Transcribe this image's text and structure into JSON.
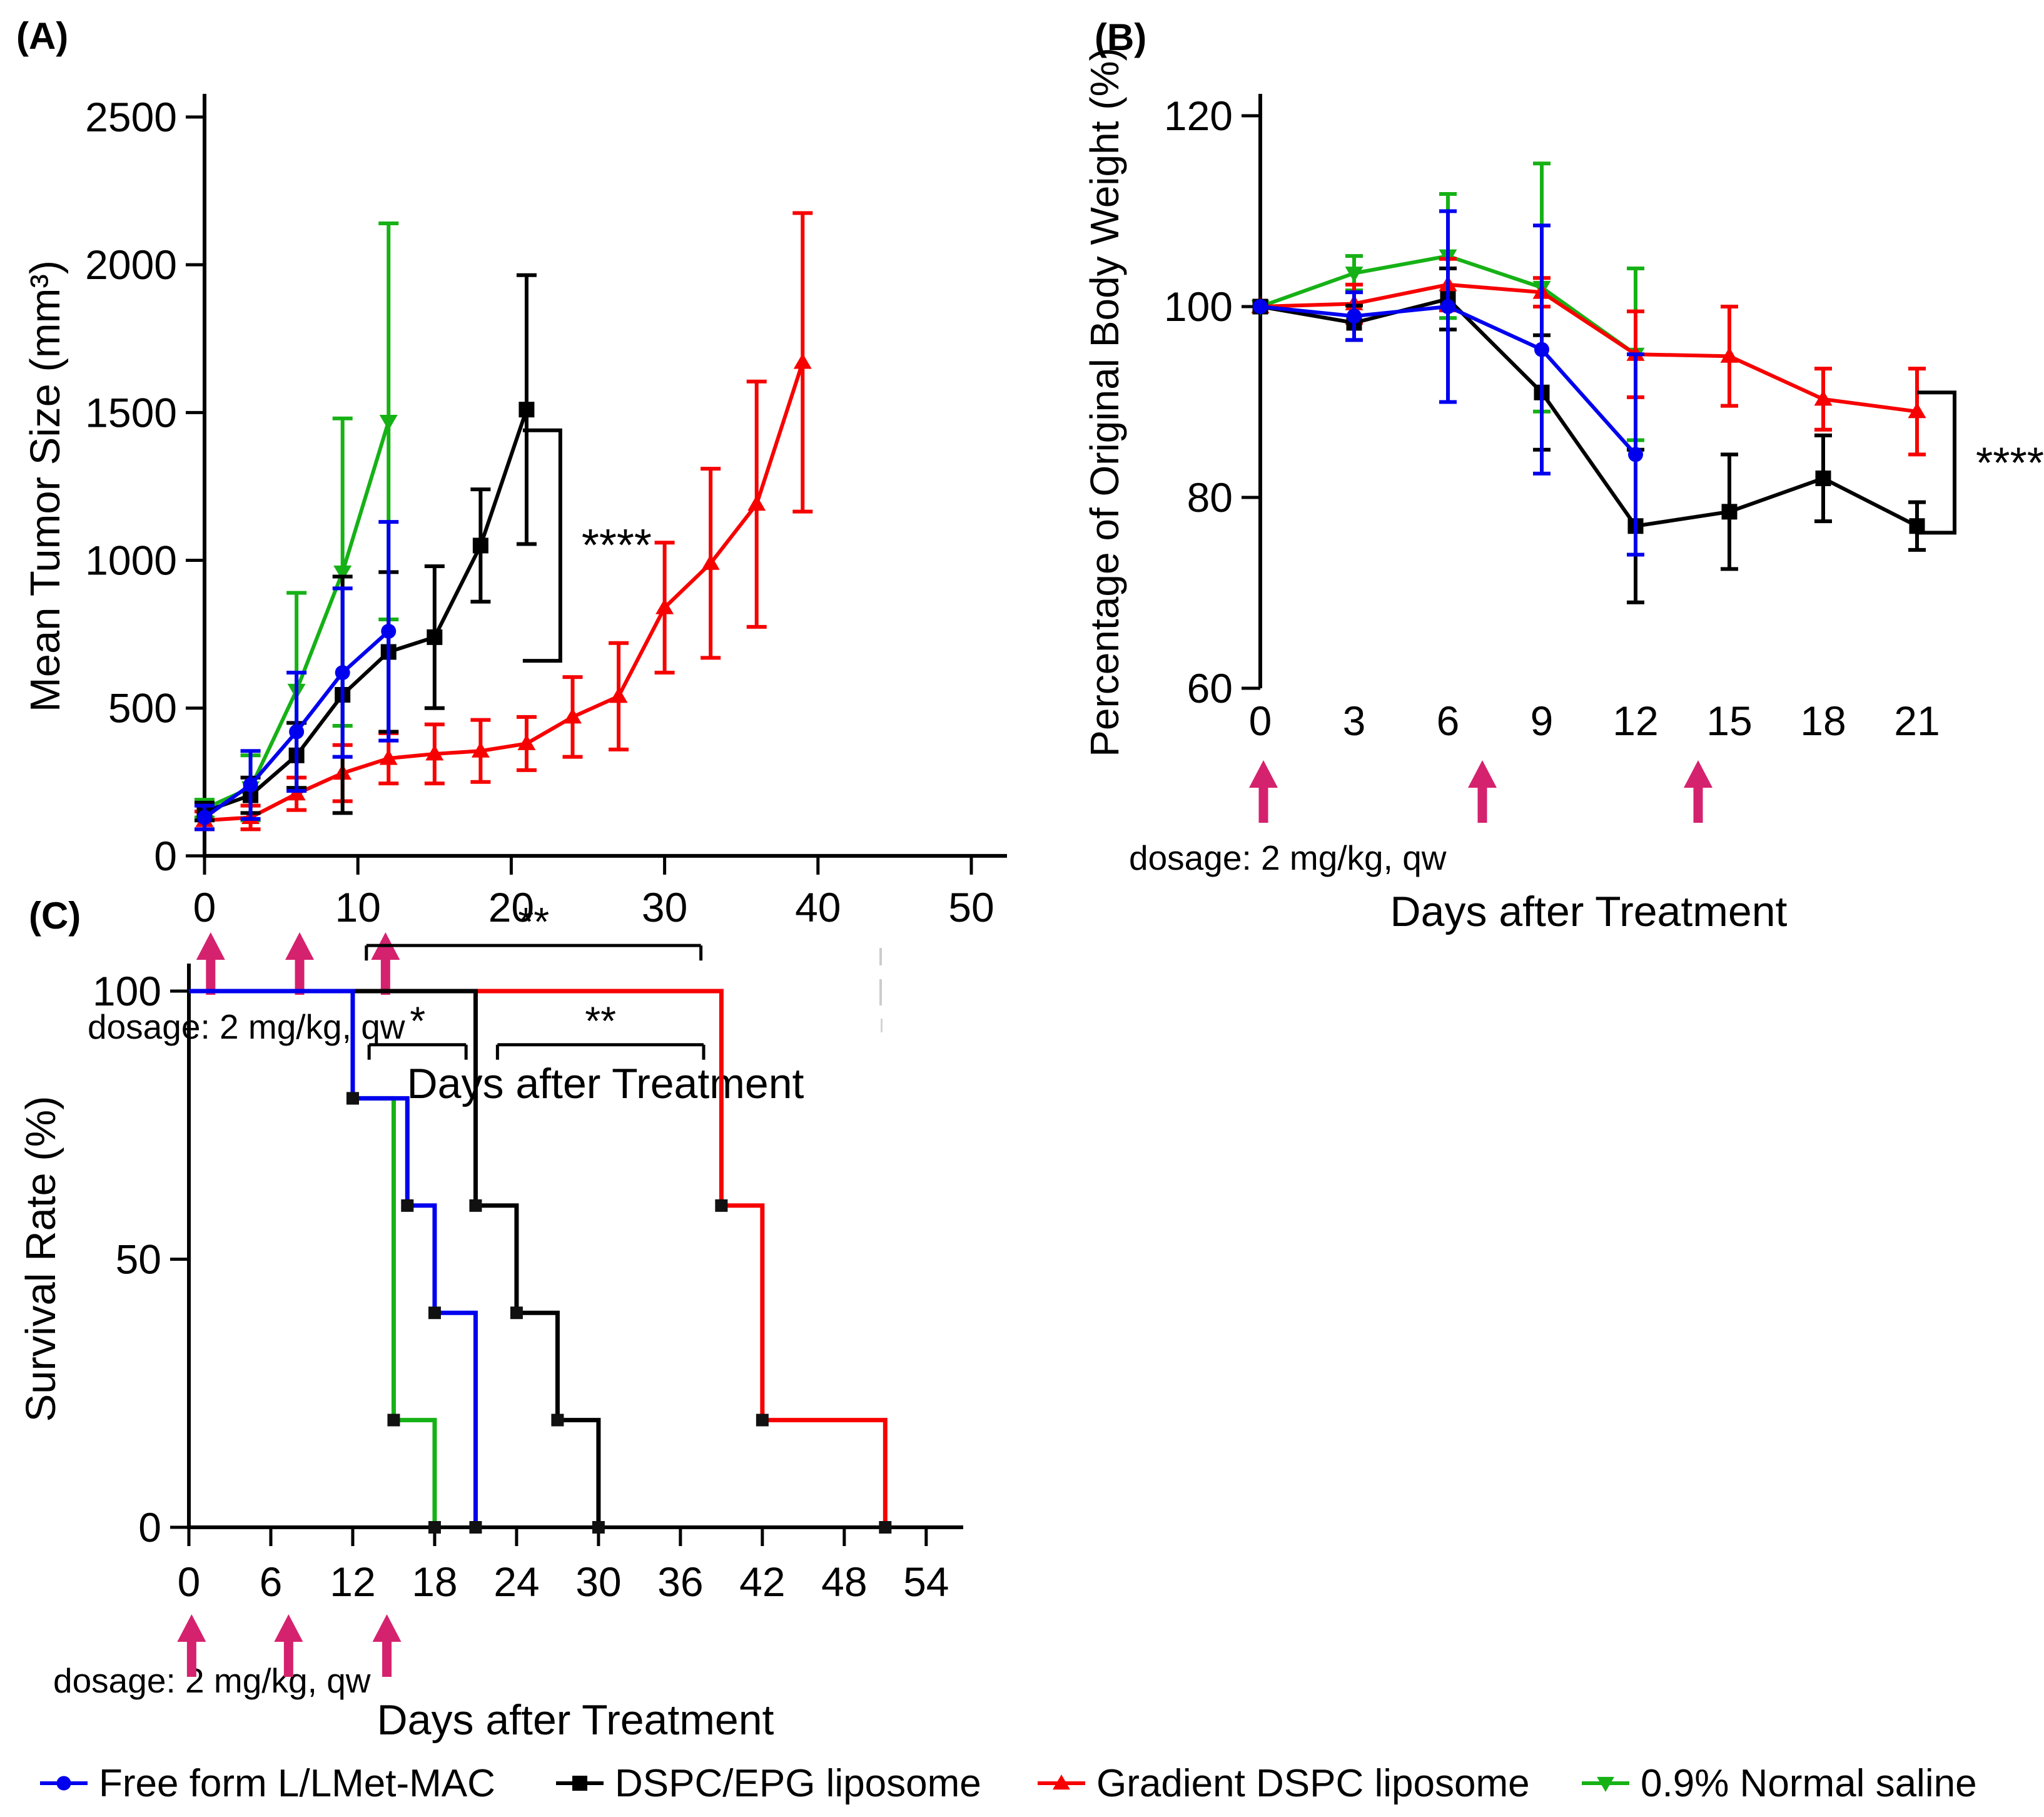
{
  "colors": {
    "blue": "#0000EE",
    "black": "#000000",
    "red": "#F70000",
    "green": "#16B116",
    "arrow_magenta": "#D5226E",
    "axis": "#000000",
    "artifact_gray": "#cccccc"
  },
  "legend": {
    "items": [
      {
        "label": "Free form L/LMet-MAC",
        "color": "#0000EE",
        "marker": "circle"
      },
      {
        "label": "DSPC/EPG liposome",
        "color": "#000000",
        "marker": "square"
      },
      {
        "label": "Gradient DSPC liposome",
        "color": "#F70000",
        "marker": "triangle-up"
      },
      {
        "label": "0.9% Normal saline",
        "color": "#16B116",
        "marker": "triangle-down"
      }
    ]
  },
  "chart_data": [
    {
      "panel_label": "(A)",
      "type": "line",
      "xlabel": "Days after Treatment",
      "ylabel": "Mean Tumor Size (mm³)",
      "xlim": [
        0,
        50
      ],
      "ylim": [
        0,
        2500
      ],
      "xticks": [
        0,
        10,
        20,
        30,
        40,
        50
      ],
      "yticks": [
        0,
        500,
        1000,
        1500,
        2000,
        2500
      ],
      "grid": false,
      "dosage_note": "dosage: 2 mg/kg, qw",
      "dosage_arrow_days": [
        0.4,
        6.2,
        11.8
      ],
      "series": [
        {
          "name": "Free form L/LMet-MAC",
          "color": "#0000EE",
          "marker": "circle",
          "x": [
            0,
            3,
            6,
            9,
            12
          ],
          "y": [
            130,
            240,
            420,
            620,
            760
          ],
          "err": [
            40,
            115,
            200,
            285,
            370
          ]
        },
        {
          "name": "DSPC/EPG liposome",
          "color": "#000000",
          "marker": "square",
          "x": [
            0,
            3,
            6,
            9,
            12,
            15,
            18,
            21
          ],
          "y": [
            150,
            205,
            340,
            545,
            690,
            740,
            1050,
            1510
          ],
          "err": [
            30,
            60,
            110,
            400,
            270,
            240,
            190,
            455
          ]
        },
        {
          "name": "Gradient DSPC liposome",
          "color": "#F70000",
          "marker": "triangle-up",
          "x": [
            0,
            3,
            6,
            9,
            12,
            15,
            18,
            21,
            24,
            27,
            30,
            33,
            36,
            39
          ],
          "y": [
            120,
            130,
            210,
            280,
            330,
            345,
            355,
            380,
            470,
            540,
            840,
            990,
            1190,
            1670
          ],
          "err": [
            30,
            40,
            55,
            95,
            85,
            100,
            105,
            90,
            135,
            180,
            220,
            320,
            415,
            505
          ]
        },
        {
          "name": "0.9% Normal saline",
          "color": "#16B116",
          "marker": "triangle-down",
          "x": [
            0,
            3,
            6,
            9,
            12
          ],
          "y": [
            160,
            230,
            560,
            960,
            1470
          ],
          "err": [
            30,
            110,
            330,
            520,
            670
          ]
        }
      ],
      "significance": {
        "label": "****",
        "x_day": 23.2,
        "top": 1440,
        "bottom": 660
      }
    },
    {
      "panel_label": "(B)",
      "type": "line",
      "xlabel": "Days after Treatment",
      "ylabel": "Percentage of Original Body Weight (%)",
      "xlim": [
        0,
        21
      ],
      "ylim": [
        60,
        120
      ],
      "xticks": [
        0,
        3,
        6,
        9,
        12,
        15,
        18,
        21
      ],
      "yticks": [
        60,
        80,
        100,
        120
      ],
      "grid": false,
      "dosage_note": "dosage: 2 mg/kg, qw",
      "dosage_arrow_days": [
        0.1,
        7.1,
        14.0
      ],
      "series": [
        {
          "name": "Free form L/LMet-MAC",
          "color": "#0000EE",
          "marker": "circle",
          "x": [
            0,
            3,
            6,
            9,
            12
          ],
          "y": [
            100,
            99,
            100,
            95.5,
            84.5
          ],
          "err": [
            0,
            2.5,
            10,
            13,
            10.5
          ]
        },
        {
          "name": "DSPC/EPG liposome",
          "color": "#000000",
          "marker": "square",
          "x": [
            0,
            3,
            6,
            9,
            12,
            15,
            18,
            21
          ],
          "y": [
            100,
            98.3,
            100.8,
            91,
            77,
            78.5,
            82,
            77
          ],
          "err": [
            0,
            1.8,
            3.2,
            6,
            8,
            6,
            4.5,
            2.5
          ]
        },
        {
          "name": "Gradient DSPC liposome",
          "color": "#F70000",
          "marker": "triangle-up",
          "x": [
            0,
            3,
            6,
            9,
            12,
            15,
            18,
            21
          ],
          "y": [
            100,
            100.3,
            102.3,
            101.5,
            95,
            94.8,
            90.3,
            89
          ],
          "err": [
            0,
            2,
            2.7,
            1.5,
            4.5,
            5.2,
            3.2,
            4.5
          ]
        },
        {
          "name": "0.9% Normal saline",
          "color": "#16B116",
          "marker": "triangle-down",
          "x": [
            0,
            3,
            6,
            9,
            12
          ],
          "y": [
            100,
            103.5,
            105.3,
            102,
            95
          ],
          "err": [
            0,
            1.8,
            6.5,
            13,
            9
          ]
        }
      ],
      "significance": {
        "label": "****",
        "x_day": 22.2,
        "top": 91,
        "bottom": 76.3
      }
    },
    {
      "panel_label": "(C)",
      "type": "step",
      "xlabel": "Days after Treatment",
      "ylabel": "Survival Rate (%)",
      "xlim": [
        0,
        54
      ],
      "ylim": [
        0,
        100
      ],
      "xticks": [
        0,
        6,
        12,
        18,
        24,
        30,
        36,
        42,
        48,
        54
      ],
      "yticks": [
        0,
        50,
        100
      ],
      "grid": false,
      "dosage_note": "dosage: 2 mg/kg, qw",
      "dosage_arrow_days": [
        0.2,
        7.3,
        14.5
      ],
      "series": [
        {
          "name": "Free form L/LMet-MAC",
          "color": "#0000EE",
          "marker": "square",
          "points": [
            [
              0,
              100
            ],
            [
              12,
              80
            ],
            [
              16,
              60
            ],
            [
              18,
              40
            ],
            [
              21,
              0
            ]
          ]
        },
        {
          "name": "DSPC/EPG liposome",
          "color": "#000000",
          "marker": "square",
          "points": [
            [
              0,
              100
            ],
            [
              21,
              60
            ],
            [
              24,
              40
            ],
            [
              27,
              20
            ],
            [
              30,
              0
            ]
          ]
        },
        {
          "name": "Gradient DSPC liposome",
          "color": "#F70000",
          "marker": "square",
          "points": [
            [
              0,
              100
            ],
            [
              39,
              60
            ],
            [
              42,
              20
            ],
            [
              51,
              0
            ]
          ]
        },
        {
          "name": "0.9% Normal saline",
          "color": "#16B116",
          "marker": "square",
          "points": [
            [
              0,
              100
            ],
            [
              12,
              80
            ],
            [
              15,
              20
            ],
            [
              18,
              0
            ]
          ]
        }
      ],
      "significance_bars": [
        {
          "label": "**",
          "x1": 13.0,
          "x2": 37.5,
          "y": 108.5
        },
        {
          "label": "*",
          "x1": 13.2,
          "x2": 20.3,
          "y": 90
        },
        {
          "label": "**",
          "x1": 22.6,
          "x2": 37.7,
          "y": 90
        }
      ]
    }
  ]
}
